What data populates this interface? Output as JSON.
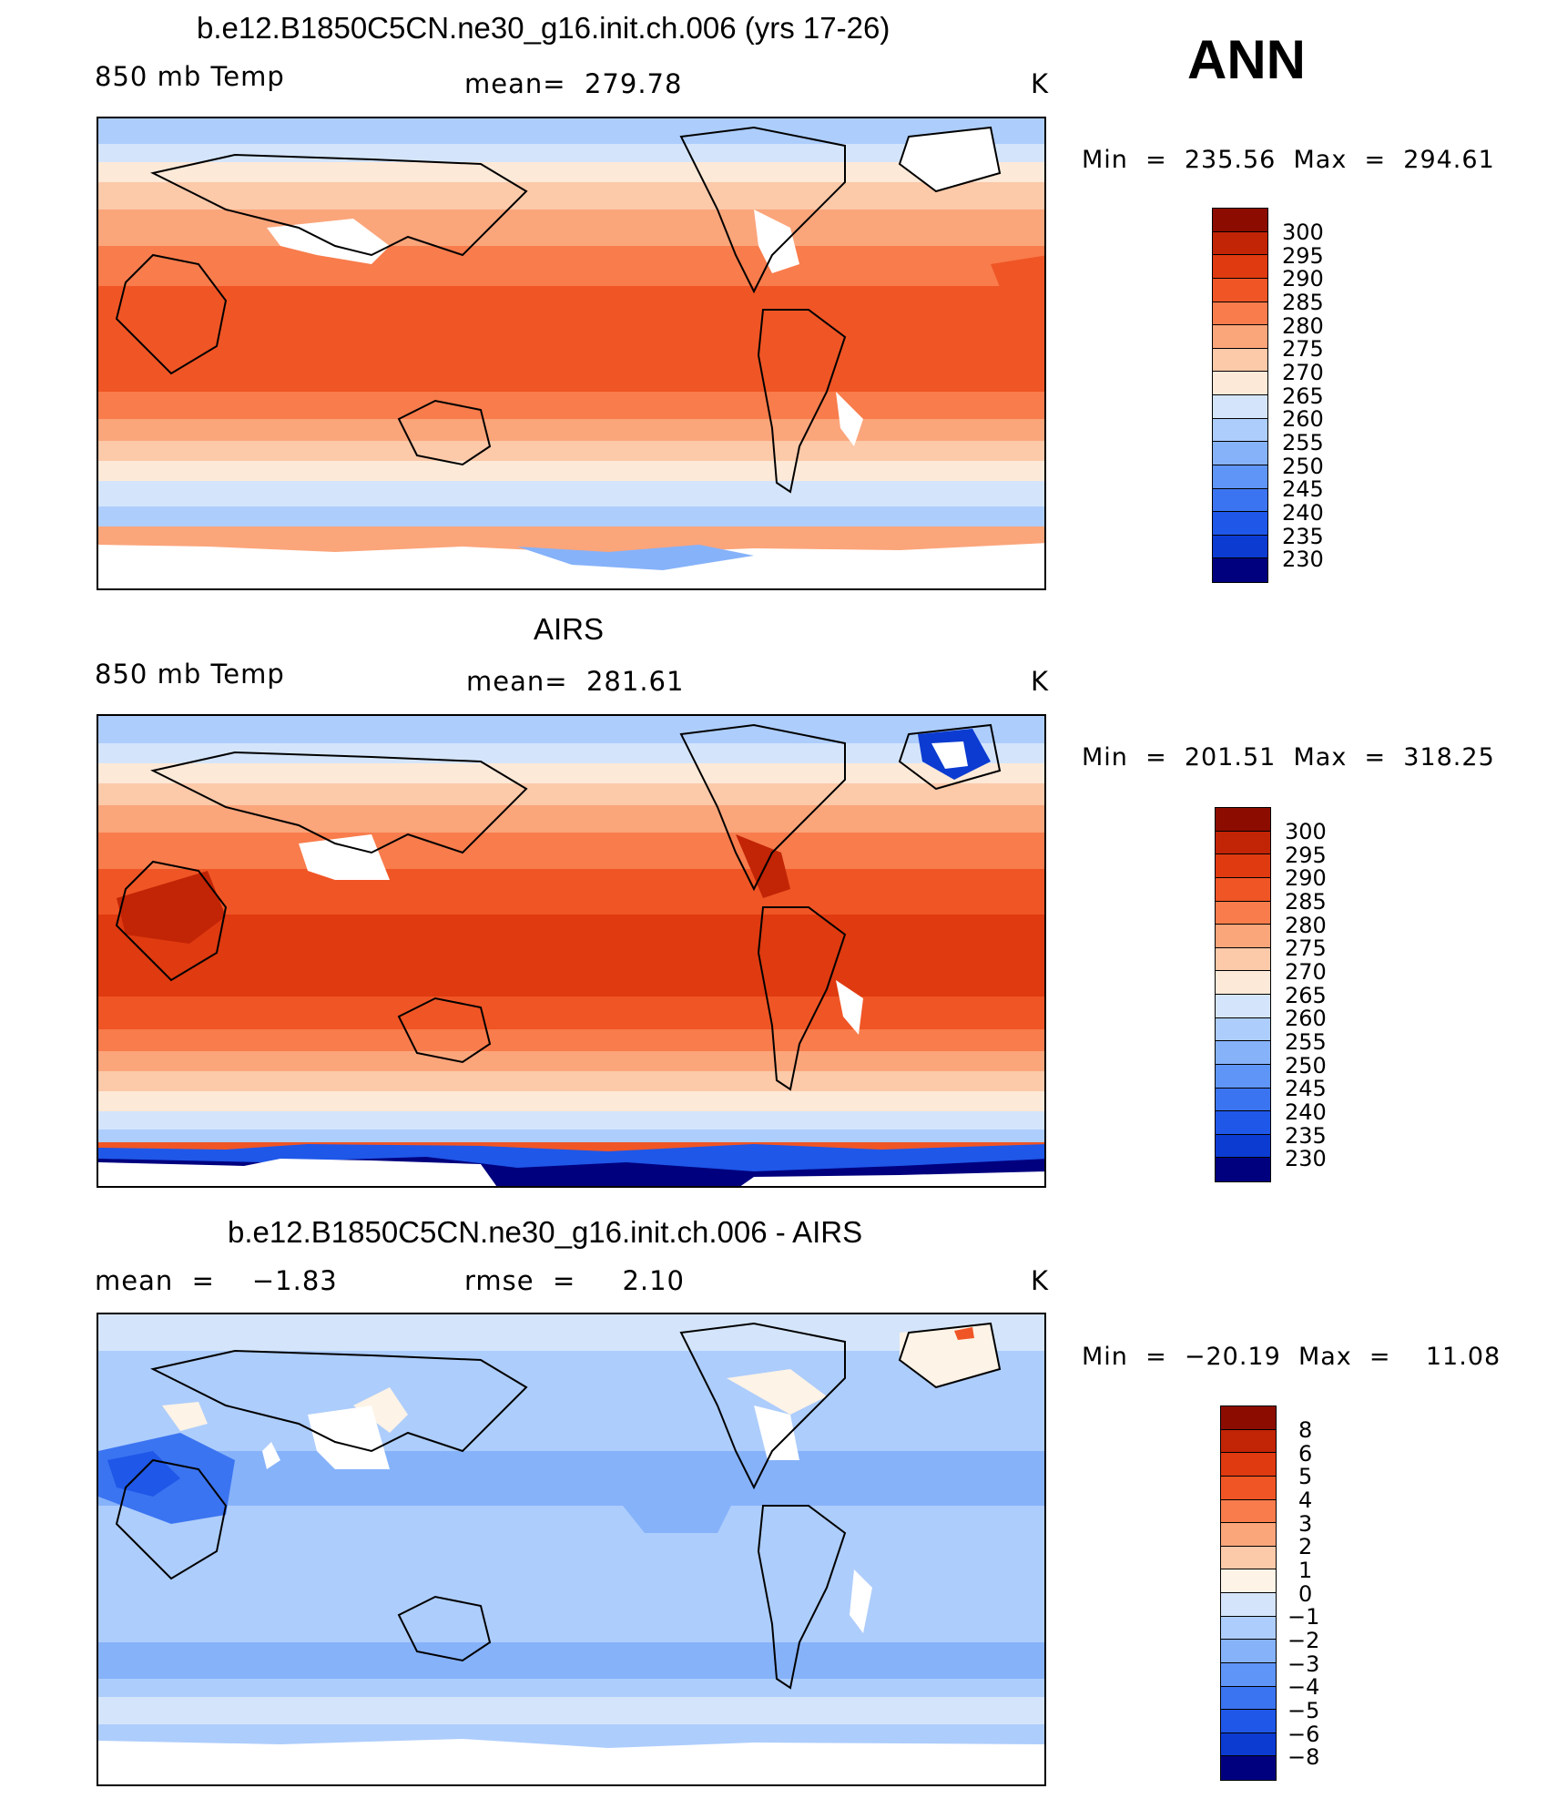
{
  "season": "ANN",
  "colors": {
    "temp_scale": [
      "#00007f",
      "#0a1fa6",
      "#0b3bd1",
      "#1f57e8",
      "#3b74f1",
      "#5f95f7",
      "#86b2fa",
      "#adcdfc",
      "#d4e5fb",
      "#fde9d8",
      "#fcc9a9",
      "#fba57b",
      "#f87c4c",
      "#f05525",
      "#df3a10",
      "#c22406",
      "#8c0c00"
    ],
    "diff_scale": [
      "#00007f",
      "#0a1fa6",
      "#0b3bd1",
      "#1f57e8",
      "#3b74f1",
      "#5f95f7",
      "#86b2fa",
      "#adcdfc",
      "#d4e5fb",
      "#fdf3e6",
      "#fcc9a9",
      "#fba57b",
      "#f87c4c",
      "#f05525",
      "#df3a10",
      "#c22406",
      "#8c0c00"
    ],
    "missing": "#ffffff"
  },
  "panels": [
    {
      "title": "b.e12.B1850C5CN.ne30_g16.init.ch.006 (yrs 17-26)",
      "left_label": "850 mb Temp",
      "center_label": "mean=  279.78",
      "units": "K",
      "minmax": "Min  =  235.56  Max  =  294.61",
      "colorbar_labels": [
        "300",
        "295",
        "290",
        "285",
        "280",
        "275",
        "270",
        "265",
        "260",
        "255",
        "250",
        "245",
        "240",
        "235",
        "230"
      ]
    },
    {
      "title": "AIRS",
      "left_label": "850 mb Temp",
      "center_label": "mean=  281.61",
      "units": "K",
      "minmax": "Min  =  201.51  Max  =  318.25",
      "colorbar_labels": [
        "300",
        "295",
        "290",
        "285",
        "280",
        "275",
        "270",
        "265",
        "260",
        "255",
        "250",
        "245",
        "240",
        "235",
        "230"
      ]
    },
    {
      "title": "b.e12.B1850C5CN.ne30_g16.init.ch.006 - AIRS",
      "left_label": "mean  =    −1.83",
      "center_label": "rmse  =     2.10",
      "units": "K",
      "minmax": "Min  =  −20.19  Max  =    11.08",
      "colorbar_labels": [
        "8",
        "6",
        "5",
        "4",
        "3",
        "2",
        "1",
        "0",
        "−1",
        "−2",
        "−3",
        "−4",
        "−5",
        "−6",
        "−8"
      ]
    }
  ]
}
